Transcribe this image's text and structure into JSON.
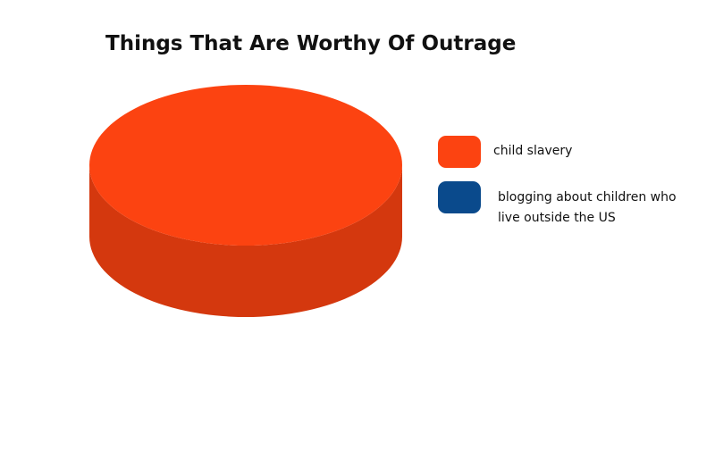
{
  "chart_data": {
    "type": "pie",
    "title": "Things That Are Worthy Of Outrage",
    "categories": [
      "child slavery",
      "blogging about children who live outside the US"
    ],
    "values": [
      100,
      0
    ],
    "colors": [
      "#fc4311",
      "#0a4a8c"
    ]
  }
}
